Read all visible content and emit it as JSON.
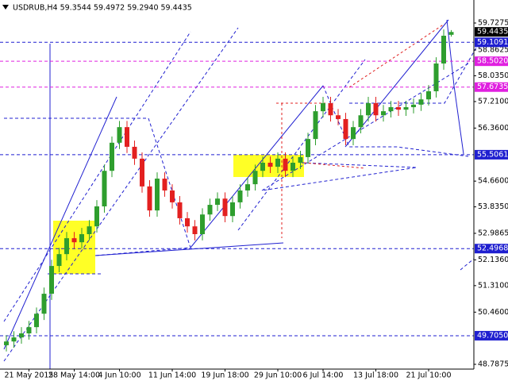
{
  "chart_data": {
    "type": "candlestick",
    "title": "USDRUB,H4  59.3544 59.4972 59.2940 59.4435",
    "categories": [
      null,
      null,
      null,
      "21 May 2015",
      null,
      null,
      null,
      null,
      null,
      "28 May 14:00",
      null,
      null,
      null,
      null,
      null,
      "4 Jun 10:00",
      null,
      null,
      null,
      null,
      null,
      null,
      "11 Jun 14:00",
      null,
      null,
      null,
      null,
      null,
      null,
      "19 Jun 18:00",
      null,
      null,
      null,
      null,
      null,
      null,
      "29 Jun 10:00",
      null,
      null,
      null,
      null,
      null,
      "6 Jul 14:00",
      null,
      null,
      null,
      null,
      null,
      null,
      "13 Jul 18:00",
      null,
      null,
      null,
      null,
      null,
      null,
      "21 Jul 10:00",
      null,
      null,
      null
    ],
    "open": [
      49.4,
      49.52,
      49.65,
      49.78,
      49.98,
      50.41,
      51.05,
      51.94,
      52.32,
      52.83,
      52.7,
      52.96,
      53.21,
      53.85,
      54.99,
      55.89,
      56.39,
      55.76,
      55.38,
      54.49,
      53.72,
      54.74,
      54.36,
      53.98,
      53.47,
      53.21,
      52.96,
      53.59,
      53.9,
      54.1,
      53.54,
      53.98,
      54.36,
      54.56,
      54.99,
      55.25,
      55.12,
      55.38,
      54.99,
      55.25,
      55.43,
      56.01,
      56.9,
      57.16,
      56.77,
      56.65,
      56.01,
      56.39,
      56.77,
      57.16,
      56.77,
      56.9,
      57.03,
      56.95,
      57.03,
      57.11,
      57.28,
      57.54,
      58.43,
      59.35
    ],
    "high": [
      49.72,
      49.85,
      49.98,
      50.18,
      50.61,
      51.25,
      52.14,
      52.52,
      53.03,
      53.03,
      53.16,
      53.41,
      54.05,
      55.19,
      56.09,
      56.59,
      56.59,
      55.96,
      55.58,
      54.69,
      54.94,
      54.94,
      54.56,
      54.18,
      53.67,
      53.41,
      53.79,
      54.1,
      54.3,
      54.3,
      54.18,
      54.56,
      54.76,
      55.19,
      55.45,
      55.45,
      55.58,
      55.58,
      55.45,
      55.63,
      56.21,
      57.1,
      57.36,
      57.36,
      56.97,
      56.85,
      56.59,
      56.97,
      57.36,
      57.36,
      57.1,
      57.23,
      57.23,
      57.23,
      57.31,
      57.48,
      57.74,
      58.63,
      59.52,
      59.5
    ],
    "low": [
      49.2,
      49.32,
      49.45,
      49.58,
      49.78,
      50.21,
      50.85,
      51.74,
      52.12,
      52.5,
      52.5,
      52.76,
      53.01,
      53.65,
      54.79,
      55.69,
      55.56,
      55.18,
      54.29,
      53.52,
      53.52,
      54.16,
      53.78,
      53.27,
      53.01,
      52.76,
      52.76,
      53.39,
      53.7,
      53.34,
      53.34,
      53.78,
      54.16,
      54.36,
      54.79,
      54.92,
      54.92,
      54.79,
      54.79,
      55.05,
      55.23,
      55.81,
      56.7,
      56.57,
      56.45,
      55.81,
      55.81,
      56.19,
      56.57,
      56.57,
      56.57,
      56.7,
      56.75,
      56.75,
      56.83,
      56.91,
      57.08,
      57.34,
      58.23,
      59.29
    ],
    "close": [
      49.52,
      49.65,
      49.78,
      49.98,
      50.41,
      51.05,
      51.94,
      52.32,
      52.83,
      52.7,
      52.96,
      53.21,
      53.85,
      54.99,
      55.89,
      56.39,
      55.76,
      55.38,
      54.49,
      53.72,
      54.74,
      54.36,
      53.98,
      53.47,
      53.21,
      52.96,
      53.59,
      53.9,
      54.1,
      53.54,
      53.98,
      54.36,
      54.56,
      54.99,
      55.25,
      55.12,
      55.38,
      54.99,
      55.25,
      55.43,
      56.01,
      56.9,
      57.16,
      56.77,
      56.65,
      56.01,
      56.39,
      56.77,
      57.16,
      56.77,
      56.9,
      57.03,
      56.95,
      57.03,
      57.11,
      57.28,
      57.54,
      58.43,
      59.32,
      59.44
    ],
    "up_color": "#2e9e2e",
    "down_color": "#e32020",
    "ylim": [
      48.635,
      60.465
    ],
    "yticks": [
      59.7275,
      58.8625,
      {
        "value": 58.035,
        "label": "58.0350"
      },
      {
        "value": 57.21,
        "label": "57.2100"
      },
      {
        "value": 56.36,
        "label": "56.3600"
      },
      {
        "value": 54.66,
        "label": "54.6600"
      },
      {
        "value": 53.835,
        "label": "53.8350"
      },
      52.9865,
      {
        "value": 52.136,
        "label": "52.1360"
      },
      {
        "value": 51.31,
        "label": "51.3100"
      },
      {
        "value": 50.46,
        "label": "50.4600"
      },
      48.7875
    ],
    "current_price": {
      "value": 59.4435,
      "label": "59.4435"
    },
    "levels": [
      {
        "value": 59.1091,
        "label": "59.1091",
        "color": "#1f1fd0"
      },
      {
        "value": 58.502,
        "label": "58.5020",
        "color": "#e020e0"
      },
      {
        "value": 57.6735,
        "label": "57.6735",
        "color": "#e020e0"
      },
      {
        "value": 55.5061,
        "label": "55.5061",
        "color": "#1f1fd0"
      },
      {
        "value": 52.4968,
        "label": "52.4968",
        "color": "#1f1fd0"
      },
      {
        "value": 49.705,
        "label": "49.7050",
        "color": "#1f1fd0"
      }
    ]
  }
}
